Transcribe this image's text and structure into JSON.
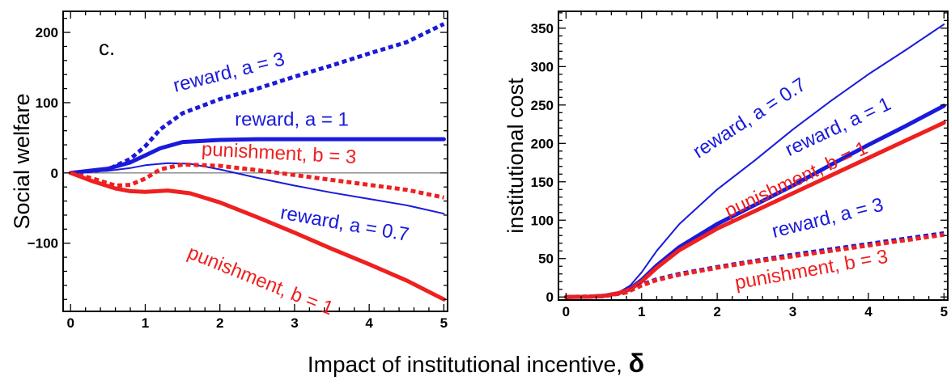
{
  "shared_xlabel_text": "Impact of institutional incentive, ",
  "shared_xlabel_symbol": "δ",
  "colors": {
    "reward": "#1a1adb",
    "punishment": "#ee2020",
    "zero_line": "#555555",
    "frame": "#000000"
  },
  "chart_data": [
    {
      "type": "line",
      "panel": "left",
      "panel_tag": "c.",
      "title": "",
      "xlabel": "",
      "ylabel": "Social welfare",
      "xlim": [
        -0.1,
        5.05
      ],
      "ylim": [
        -197,
        230
      ],
      "x_ticks": [
        0,
        1,
        2,
        3,
        4,
        5
      ],
      "y_ticks": [
        -100,
        0,
        100,
        200
      ],
      "zero_line": true,
      "grid": false,
      "series": [
        {
          "name": "reward, a = 3",
          "color": "reward",
          "style": "dotted",
          "width": "thick",
          "points": [
            [
              0,
              0
            ],
            [
              0.5,
              5
            ],
            [
              0.8,
              20
            ],
            [
              1,
              38
            ],
            [
              1.2,
              62
            ],
            [
              1.5,
              85
            ],
            [
              2,
              105
            ],
            [
              2.5,
              120
            ],
            [
              3,
              137
            ],
            [
              3.5,
              153
            ],
            [
              4,
              170
            ],
            [
              4.5,
              186
            ],
            [
              5,
              212
            ]
          ]
        },
        {
          "name": "reward, a = 1",
          "color": "reward",
          "style": "solid",
          "width": "thick",
          "points": [
            [
              0,
              0
            ],
            [
              0.5,
              6
            ],
            [
              0.8,
              15
            ],
            [
              1,
              25
            ],
            [
              1.2,
              35
            ],
            [
              1.5,
              44
            ],
            [
              2,
              47
            ],
            [
              2.5,
              48
            ],
            [
              3,
              48
            ],
            [
              4,
              48
            ],
            [
              5,
              48
            ]
          ]
        },
        {
          "name": "reward, a = 0.7",
          "color": "reward",
          "style": "solid",
          "width": "thin",
          "points": [
            [
              0,
              0
            ],
            [
              0.5,
              3
            ],
            [
              0.8,
              7
            ],
            [
              1,
              11
            ],
            [
              1.3,
              14
            ],
            [
              1.6,
              13
            ],
            [
              2,
              5
            ],
            [
              2.5,
              -7
            ],
            [
              3,
              -18
            ],
            [
              3.5,
              -28
            ],
            [
              4,
              -37
            ],
            [
              4.5,
              -46
            ],
            [
              5,
              -58
            ]
          ]
        },
        {
          "name": "punishment, b = 3",
          "color": "punishment",
          "style": "dotted",
          "width": "thick",
          "points": [
            [
              0,
              0
            ],
            [
              0.3,
              -8
            ],
            [
              0.6,
              -18
            ],
            [
              0.8,
              -17
            ],
            [
              1,
              -8
            ],
            [
              1.2,
              5
            ],
            [
              1.5,
              12
            ],
            [
              2,
              10
            ],
            [
              2.5,
              4
            ],
            [
              3,
              -3
            ],
            [
              3.5,
              -10
            ],
            [
              4,
              -17
            ],
            [
              4.5,
              -24
            ],
            [
              5,
              -35
            ]
          ]
        },
        {
          "name": "punishment, b = 1",
          "color": "punishment",
          "style": "solid",
          "width": "thick",
          "points": [
            [
              0,
              0
            ],
            [
              0.3,
              -12
            ],
            [
              0.6,
              -22
            ],
            [
              0.8,
              -26
            ],
            [
              1,
              -27
            ],
            [
              1.3,
              -25
            ],
            [
              1.6,
              -29
            ],
            [
              2,
              -42
            ],
            [
              2.5,
              -63
            ],
            [
              3,
              -85
            ],
            [
              3.5,
              -108
            ],
            [
              4,
              -130
            ],
            [
              4.5,
              -153
            ],
            [
              5,
              -180
            ]
          ]
        }
      ],
      "annotations": [
        {
          "text": "reward, a = 3",
          "series": 0,
          "x": 1.4,
          "y": 115,
          "angle": -14
        },
        {
          "text": "reward, a = 1",
          "series": 1,
          "x": 2.2,
          "y": 67,
          "angle": 0
        },
        {
          "text": "punishment, b = 3",
          "series": 3,
          "x": 1.75,
          "y": 25,
          "angle": 3
        },
        {
          "text": "reward, a = 0.7",
          "series": 2,
          "x": 2.8,
          "y": -65,
          "angle": 10
        },
        {
          "text": "punishment, b = 1",
          "series": 4,
          "x": 1.55,
          "y": -120,
          "angle": 22
        }
      ]
    },
    {
      "type": "line",
      "panel": "right",
      "title": "",
      "xlabel": "",
      "ylabel": "institutional cost",
      "xlim": [
        -0.1,
        5.05
      ],
      "ylim": [
        -4,
        372
      ],
      "x_ticks": [
        0,
        1,
        2,
        3,
        4,
        5
      ],
      "y_ticks": [
        0,
        50,
        100,
        150,
        200,
        250,
        300,
        350
      ],
      "zero_line": false,
      "grid": false,
      "series": [
        {
          "name": "reward, a = 0.7",
          "color": "reward",
          "style": "solid",
          "width": "thin",
          "points": [
            [
              0,
              0
            ],
            [
              0.3,
              0.5
            ],
            [
              0.5,
              2
            ],
            [
              0.7,
              6
            ],
            [
              0.85,
              15
            ],
            [
              1,
              32
            ],
            [
              1.2,
              60
            ],
            [
              1.5,
              95
            ],
            [
              2,
              140
            ],
            [
              2.5,
              178
            ],
            [
              3,
              218
            ],
            [
              3.5,
              255
            ],
            [
              4,
              290
            ],
            [
              4.5,
              322
            ],
            [
              5,
              355
            ]
          ]
        },
        {
          "name": "reward, a = 1",
          "color": "reward",
          "style": "solid",
          "width": "thick",
          "points": [
            [
              0,
              0
            ],
            [
              0.3,
              0.3
            ],
            [
              0.5,
              1.5
            ],
            [
              0.7,
              5
            ],
            [
              0.85,
              11
            ],
            [
              1,
              22
            ],
            [
              1.2,
              41
            ],
            [
              1.5,
              65
            ],
            [
              2,
              95
            ],
            [
              2.5,
              120
            ],
            [
              3,
              145
            ],
            [
              3.5,
              172
            ],
            [
              4,
              198
            ],
            [
              4.5,
              223
            ],
            [
              5,
              249
            ]
          ]
        },
        {
          "name": "punishment, b = 1",
          "color": "punishment",
          "style": "solid",
          "width": "thick",
          "points": [
            [
              0,
              0
            ],
            [
              0.3,
              0.3
            ],
            [
              0.5,
              1.5
            ],
            [
              0.7,
              5
            ],
            [
              0.85,
              10
            ],
            [
              1,
              20
            ],
            [
              1.2,
              38
            ],
            [
              1.5,
              61
            ],
            [
              2,
              89
            ],
            [
              2.5,
              112
            ],
            [
              3,
              135
            ],
            [
              3.5,
              158
            ],
            [
              4,
              181
            ],
            [
              4.5,
              204
            ],
            [
              5,
              227
            ]
          ]
        },
        {
          "name": "reward, a = 3",
          "color": "reward",
          "style": "dotted",
          "width": "thick",
          "points": [
            [
              0,
              0
            ],
            [
              0.5,
              1
            ],
            [
              0.8,
              6
            ],
            [
              1,
              16
            ],
            [
              1.2,
              23
            ],
            [
              1.5,
              30
            ],
            [
              2,
              39
            ],
            [
              2.5,
              47
            ],
            [
              3,
              55
            ],
            [
              3.5,
              62
            ],
            [
              4,
              69
            ],
            [
              4.5,
              76
            ],
            [
              5,
              83
            ]
          ]
        },
        {
          "name": "punishment, b = 3",
          "color": "punishment",
          "style": "dotted",
          "width": "thick",
          "points": [
            [
              0,
              0
            ],
            [
              0.5,
              1
            ],
            [
              0.8,
              6
            ],
            [
              1,
              15
            ],
            [
              1.2,
              22
            ],
            [
              1.5,
              29
            ],
            [
              2,
              38
            ],
            [
              2.5,
              46
            ],
            [
              3,
              53
            ],
            [
              3.5,
              60
            ],
            [
              4,
              67
            ],
            [
              4.5,
              74
            ],
            [
              5,
              81
            ]
          ]
        }
      ],
      "annotations": [
        {
          "text": "reward, a = 0.7",
          "series": 0,
          "x": 1.75,
          "y": 180,
          "angle": -33
        },
        {
          "text": "reward, a = 1",
          "series": 1,
          "x": 2.95,
          "y": 183,
          "angle": -25
        },
        {
          "text": "punishment, b = 1",
          "series": 2,
          "x": 2.15,
          "y": 103,
          "angle": -25
        },
        {
          "text": "reward, a = 3",
          "series": 3,
          "x": 2.75,
          "y": 77,
          "angle": -14
        },
        {
          "text": "punishment, b = 3",
          "series": 4,
          "x": 2.25,
          "y": 10,
          "angle": -10
        }
      ]
    }
  ]
}
